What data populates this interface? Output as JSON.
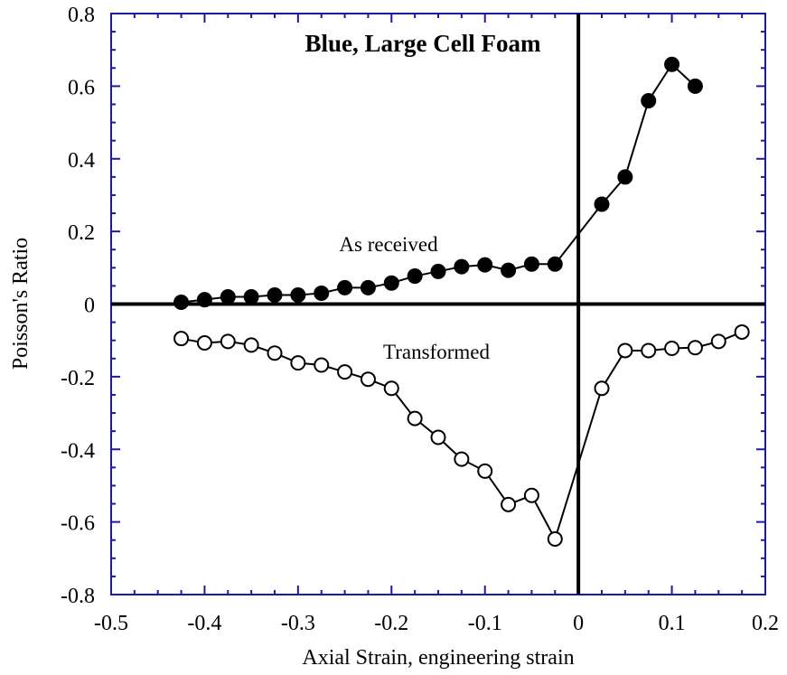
{
  "chart_data": {
    "type": "line",
    "title": "Blue, Large Cell Foam",
    "xlabel": "Axial Strain, engineering strain",
    "ylabel": "Poisson's Ratio",
    "xlim": [
      -0.5,
      0.2
    ],
    "ylim": [
      -0.8,
      0.8
    ],
    "xticks": [
      "-0.5",
      "-0.4",
      "-0.3",
      "-0.2",
      "-0.1",
      "0",
      "0.1",
      "0.2"
    ],
    "yticks": [
      "0.8",
      "0.6",
      "0.4",
      "0.2",
      "0",
      "-0.2",
      "-0.4",
      "-0.6",
      "-0.8"
    ],
    "grid": false,
    "annotations": [
      {
        "text": "As received",
        "series": "As received"
      },
      {
        "text": "Transformed",
        "series": "Transformed"
      }
    ],
    "series": [
      {
        "name": "As received",
        "marker": "filled-circle",
        "x": [
          -0.425,
          -0.4,
          -0.375,
          -0.35,
          -0.325,
          -0.3,
          -0.275,
          -0.25,
          -0.225,
          -0.2,
          -0.175,
          -0.15,
          -0.125,
          -0.1,
          -0.075,
          -0.05,
          -0.025,
          0.025,
          0.05,
          0.075,
          0.1,
          0.125
        ],
        "y": [
          0.005,
          0.012,
          0.02,
          0.02,
          0.025,
          0.025,
          0.03,
          0.045,
          0.045,
          0.058,
          0.077,
          0.09,
          0.103,
          0.108,
          0.093,
          0.11,
          0.11,
          0.275,
          0.35,
          0.56,
          0.66,
          0.6
        ]
      },
      {
        "name": "Transformed",
        "marker": "open-circle",
        "x": [
          -0.425,
          -0.4,
          -0.375,
          -0.35,
          -0.325,
          -0.3,
          -0.275,
          -0.25,
          -0.225,
          -0.2,
          -0.175,
          -0.15,
          -0.125,
          -0.1,
          -0.075,
          -0.05,
          -0.025,
          0.025,
          0.05,
          0.075,
          0.1,
          0.125,
          0.15,
          0.175
        ],
        "y": [
          -0.095,
          -0.107,
          -0.103,
          -0.113,
          -0.135,
          -0.162,
          -0.168,
          -0.187,
          -0.207,
          -0.232,
          -0.315,
          -0.367,
          -0.427,
          -0.46,
          -0.552,
          -0.527,
          -0.647,
          -0.232,
          -0.128,
          -0.128,
          -0.122,
          -0.12,
          -0.103,
          -0.077
        ]
      }
    ]
  }
}
